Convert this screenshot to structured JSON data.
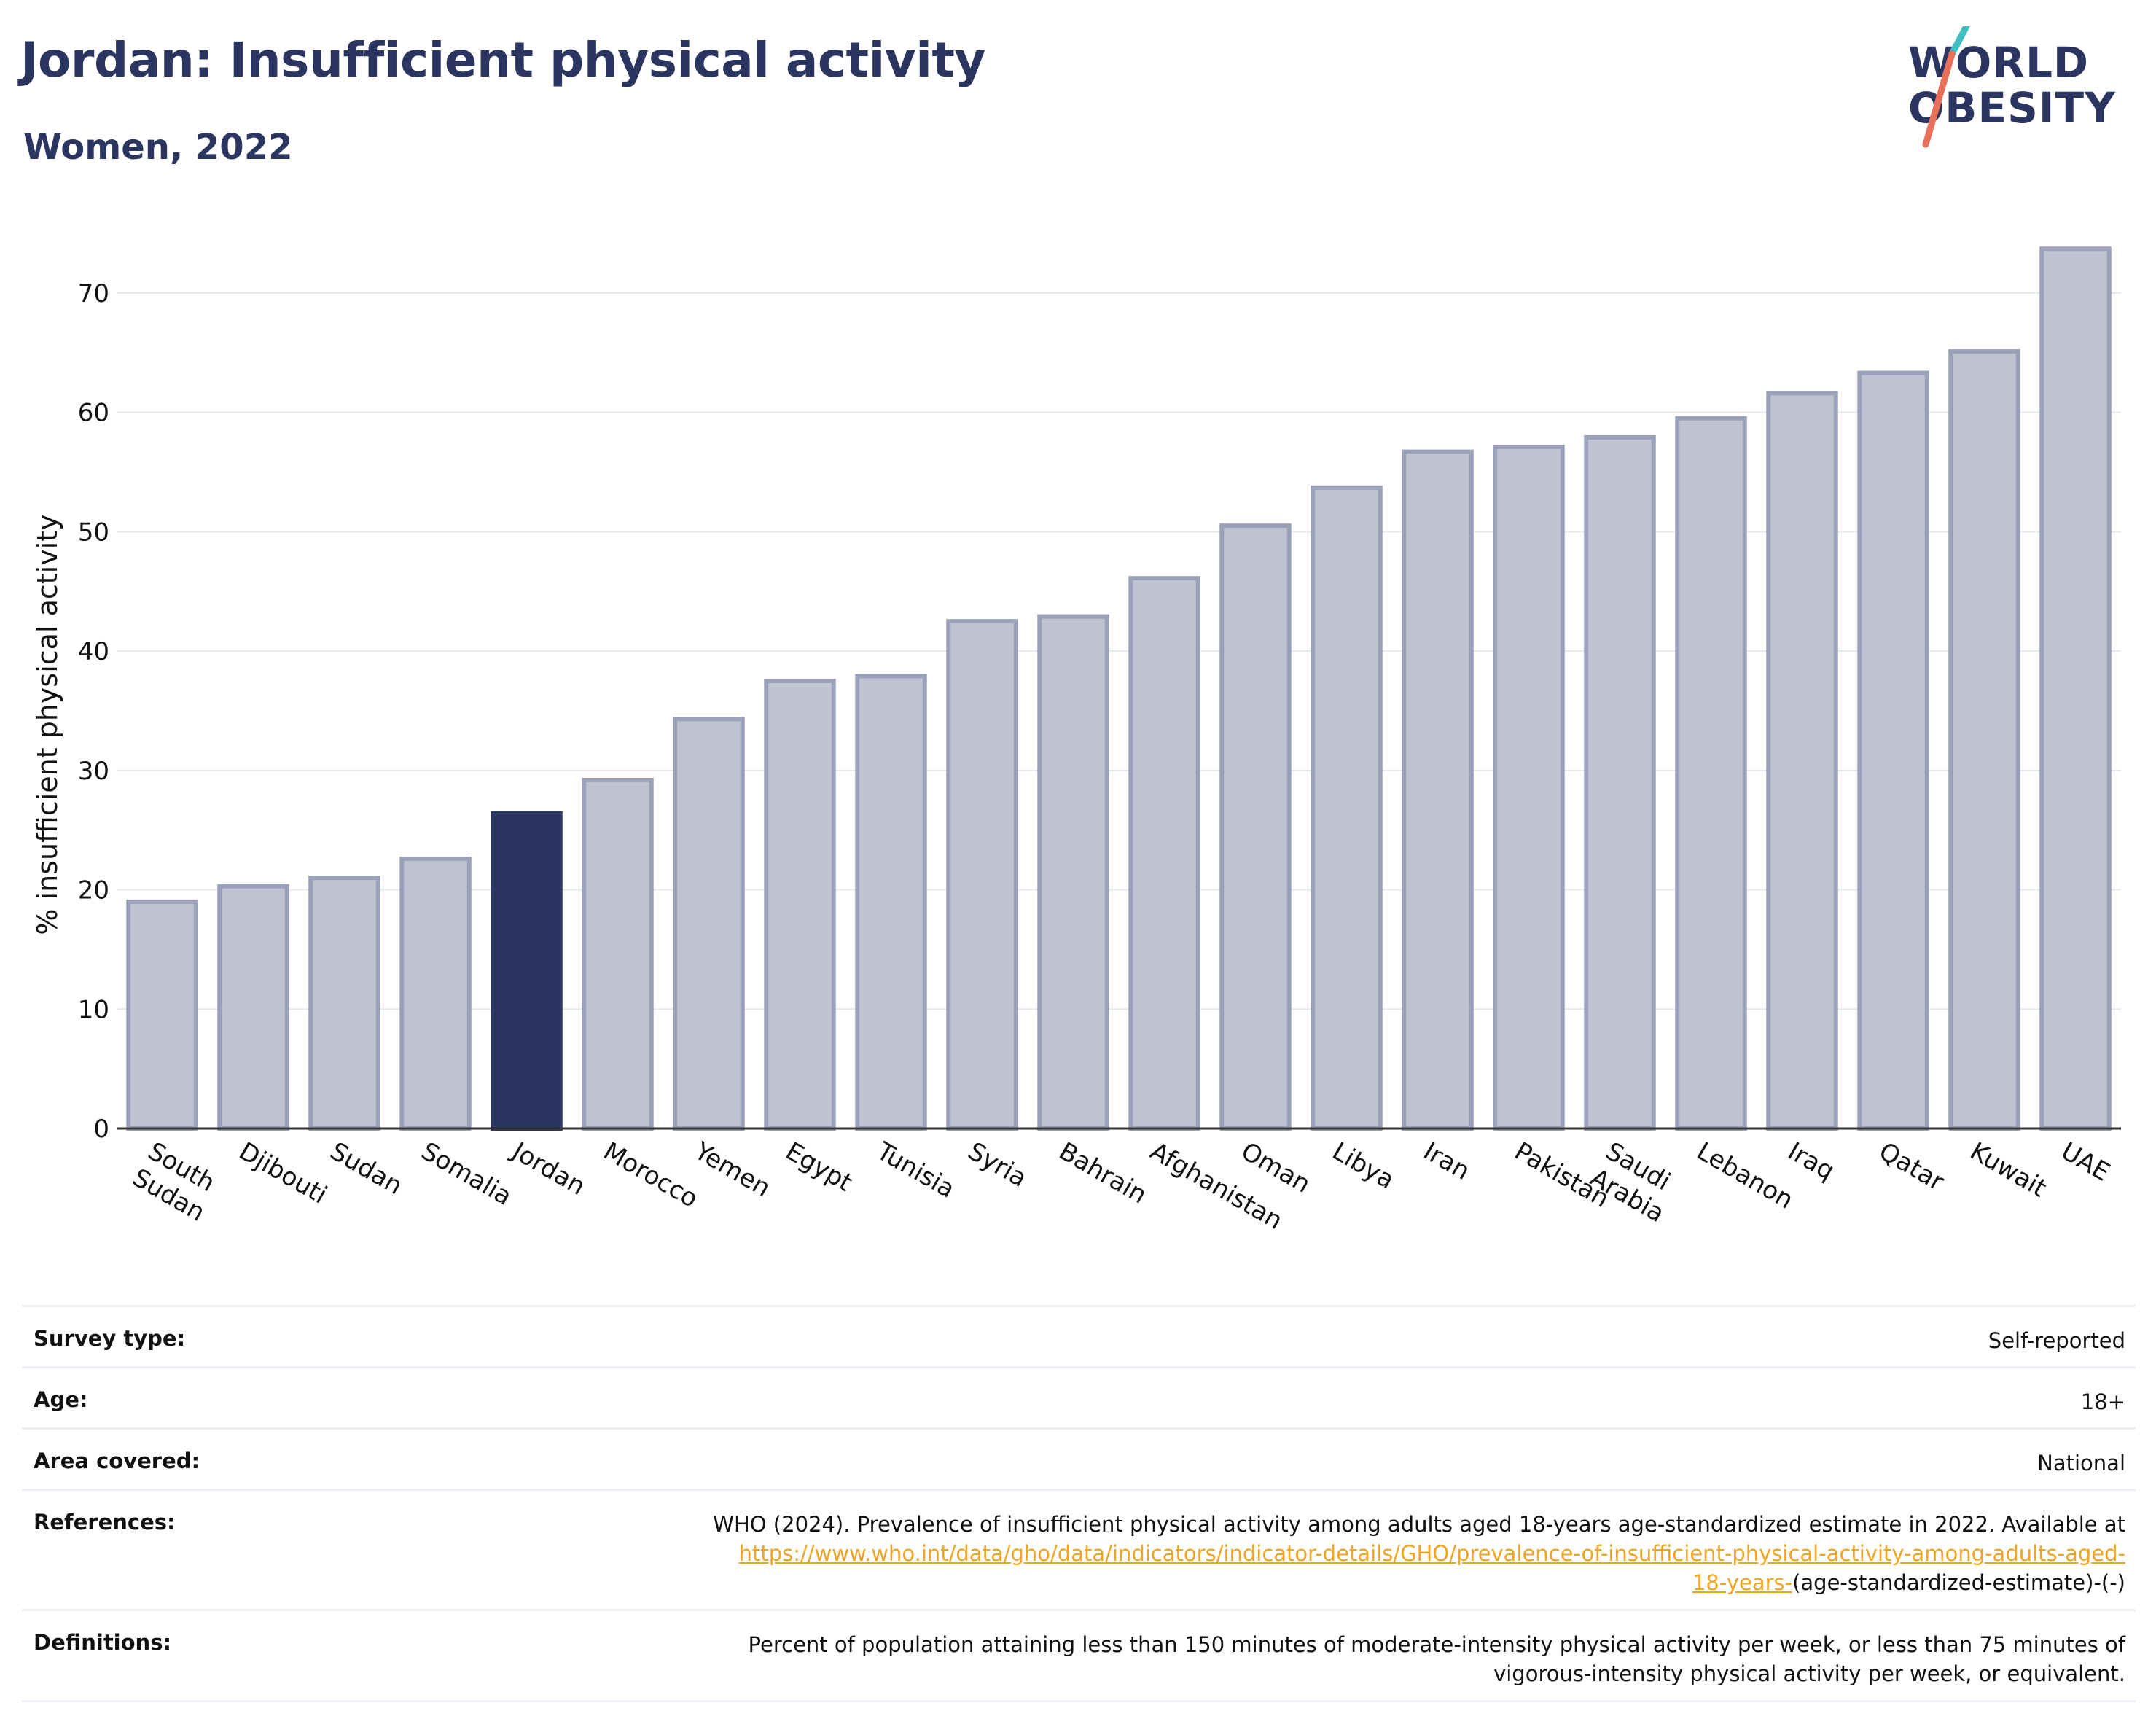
{
  "header": {
    "title": "Jordan: Insufficient physical activity",
    "subtitle": "Women, 2022"
  },
  "logo": {
    "line1": "WORLD",
    "line2": "OBESITY",
    "slash_colors": [
      "#3fbfbf",
      "#e8705a"
    ]
  },
  "colors": {
    "highlight": "#2a3560",
    "bar_fill": "#bfc3d1",
    "bar_stroke": "#9aa1b8",
    "link": "#f0a623"
  },
  "chart_data": {
    "type": "bar",
    "title": "Jordan: Insufficient physical activity",
    "subtitle": "Women, 2022",
    "xlabel": "",
    "ylabel": "% insufficient physical activity",
    "ylim": [
      0,
      75
    ],
    "yticks": [
      0,
      10,
      20,
      30,
      40,
      50,
      60,
      70
    ],
    "grid": true,
    "highlight": "Jordan",
    "categories": [
      "South Sudan",
      "Djibouti",
      "Sudan",
      "Somalia",
      "Jordan",
      "Morocco",
      "Yemen",
      "Egypt",
      "Tunisia",
      "Syria",
      "Bahrain",
      "Afghanistan",
      "Oman",
      "Libya",
      "Iran",
      "Pakistan",
      "Saudi Arabia",
      "Lebanon",
      "Iraq",
      "Qatar",
      "Kuwait",
      "UAE"
    ],
    "values": [
      19.0,
      20.3,
      21.0,
      22.6,
      26.4,
      29.2,
      34.3,
      37.5,
      37.9,
      42.5,
      42.9,
      46.1,
      50.5,
      53.7,
      56.7,
      57.1,
      57.9,
      59.5,
      61.6,
      63.3,
      65.1,
      73.7
    ]
  },
  "info": {
    "survey_type_label": "Survey type:",
    "survey_type_value": "Self-reported",
    "age_label": "Age:",
    "age_value": "18+",
    "area_label": "Area covered:",
    "area_value": "National",
    "references_label": "References:",
    "references_text": "WHO (2024). Prevalence of insufficient physical activity among adults aged 18-years age-standardized estimate in 2022. Available at",
    "references_link_line1": "https://www.who.int/data/gho/data/indicators/indicator-details/GHO/prevalence-of-insufficient-physical-activity-among-adults-aged-",
    "references_link_line2": "18-years-",
    "references_suffix": "(age-standardized-estimate)-(-)",
    "definitions_label": "Definitions:",
    "definitions_line1": "Percent of population attaining less than 150 minutes of moderate-intensity physical activity per week, or less than 75 minutes of",
    "definitions_line2": "vigorous-intensity physical activity per week, or equivalent."
  }
}
